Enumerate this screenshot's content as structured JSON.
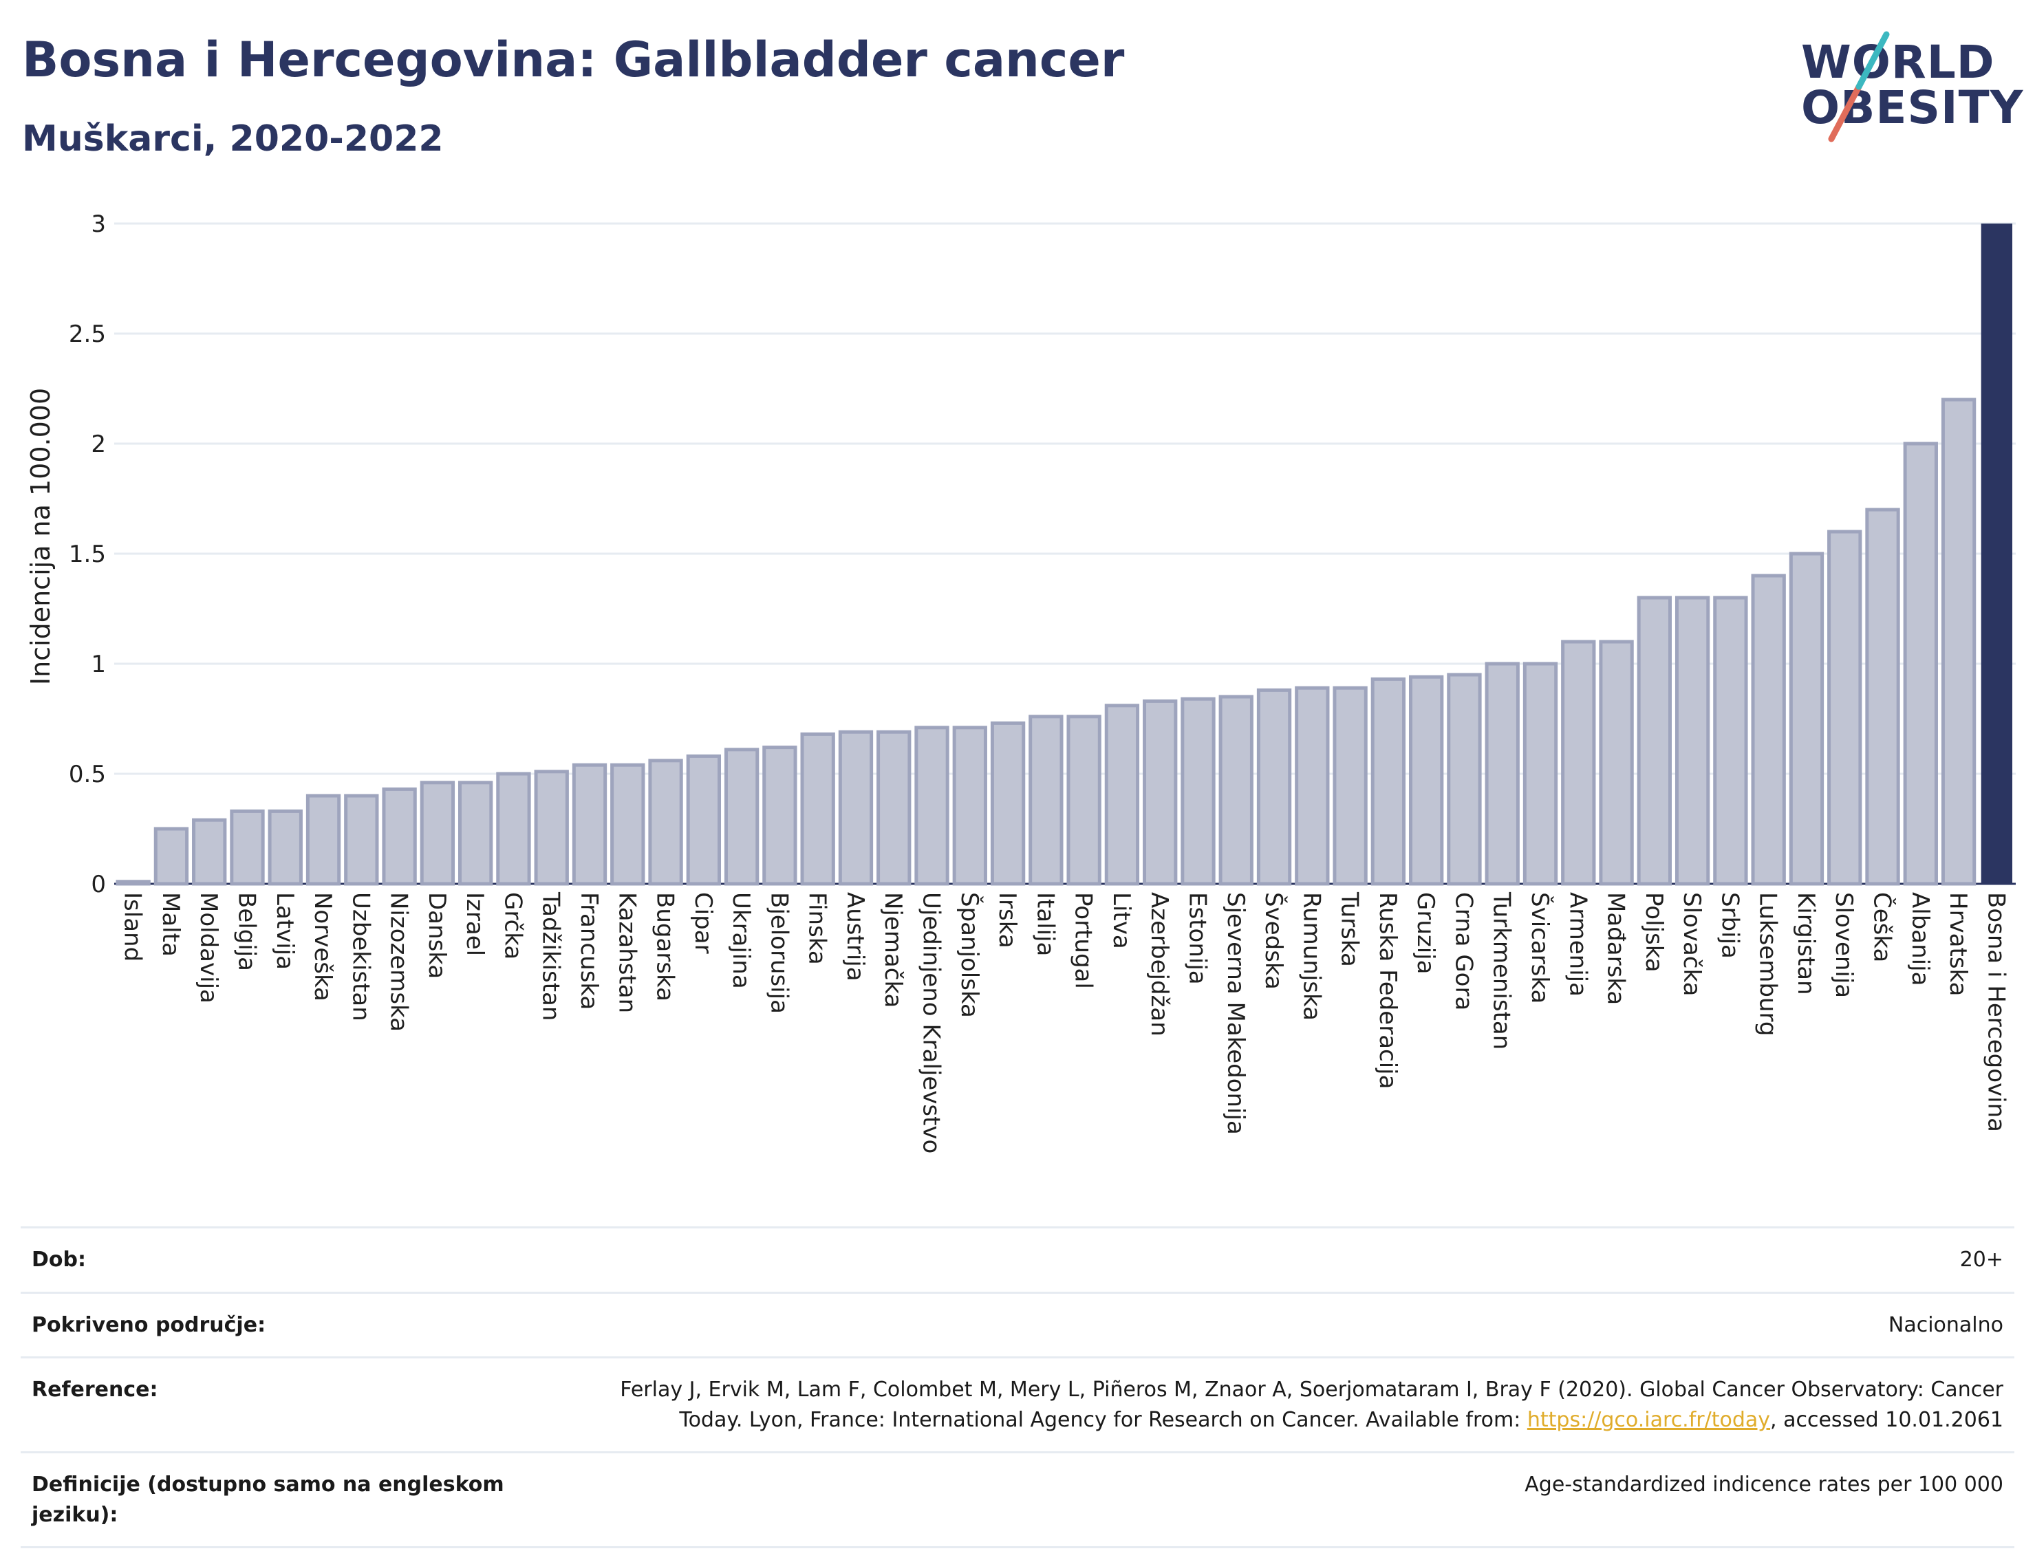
{
  "header": {
    "title": "Bosna i Hercegovina: Gallbladder cancer",
    "subtitle": "Muškarci, 2020-2022"
  },
  "logo": {
    "line1": "WORLD",
    "line2": "OBESITY"
  },
  "colors": {
    "bar_default": "#c0c4d3",
    "bar_border": "#9ea4bd",
    "bar_highlight": "#2b3561",
    "grid": "#e6ebf1",
    "link": "#e0ac2b"
  },
  "chart_data": {
    "type": "bar",
    "title": "Bosna i Hercegovina: Gallbladder cancer",
    "subtitle": "Muškarci, 2020-2022",
    "ylabel": "Incidencija na 100.000",
    "xlabel": "",
    "ylim": [
      0,
      3
    ],
    "yticks": [
      0,
      0.5,
      1,
      1.5,
      2,
      2.5,
      3
    ],
    "grid": true,
    "highlight_category": "Bosna i Hercegovina",
    "categories": [
      "Island",
      "Malta",
      "Moldavija",
      "Belgija",
      "Latvija",
      "Norveška",
      "Uzbekistan",
      "Nizozemska",
      "Danska",
      "Izrael",
      "Grčka",
      "Tadžikistan",
      "Francuska",
      "Kazahstan",
      "Bugarska",
      "Cipar",
      "Ukrajina",
      "Bjelorusija",
      "Finska",
      "Austrija",
      "Njemačka",
      "Ujedinjeno Kraljevstvo",
      "Španjolska",
      "Irska",
      "Italija",
      "Portugal",
      "Litva",
      "Azerbejdžan",
      "Estonija",
      "Sjeverna Makedonija",
      "Švedska",
      "Rumunjska",
      "Turska",
      "Ruska Federacija",
      "Gruzija",
      "Crna Gora",
      "Turkmenistan",
      "Švicarska",
      "Armenija",
      "Mađarska",
      "Poljska",
      "Slovačka",
      "Srbija",
      "Luksemburg",
      "Kirgistan",
      "Slovenija",
      "Češka",
      "Albanija",
      "Hrvatska",
      "Bosna i Hercegovina"
    ],
    "values": [
      0.01,
      0.25,
      0.29,
      0.33,
      0.33,
      0.4,
      0.4,
      0.43,
      0.46,
      0.46,
      0.5,
      0.51,
      0.54,
      0.54,
      0.56,
      0.58,
      0.61,
      0.62,
      0.68,
      0.69,
      0.69,
      0.71,
      0.71,
      0.73,
      0.76,
      0.76,
      0.81,
      0.83,
      0.84,
      0.85,
      0.88,
      0.89,
      0.89,
      0.93,
      0.94,
      0.95,
      1.0,
      1.0,
      1.1,
      1.1,
      1.3,
      1.3,
      1.3,
      1.4,
      1.5,
      1.6,
      1.7,
      2.0,
      2.2,
      3.0
    ]
  },
  "info": {
    "rows": [
      {
        "key": "Dob:",
        "value": "20+"
      },
      {
        "key": "Pokriveno područje:",
        "value": "Nacionalno"
      },
      {
        "key": "Reference:",
        "value": "Ferlay J, Ervik M, Lam F, Colombet M, Mery L, Piñeros M, Znaor A, Soerjomataram I, Bray F (2020). Global Cancer Observatory: Cancer Today. Lyon, France: International Agency for Research on Cancer. Available from:",
        "link": "https://gco.iarc.fr/today",
        "suffix": ", accessed 10.01.2061"
      },
      {
        "key": "Definicije (dostupno samo na engleskom jeziku):",
        "value": "Age-standardized indicence rates per 100 000"
      }
    ]
  }
}
